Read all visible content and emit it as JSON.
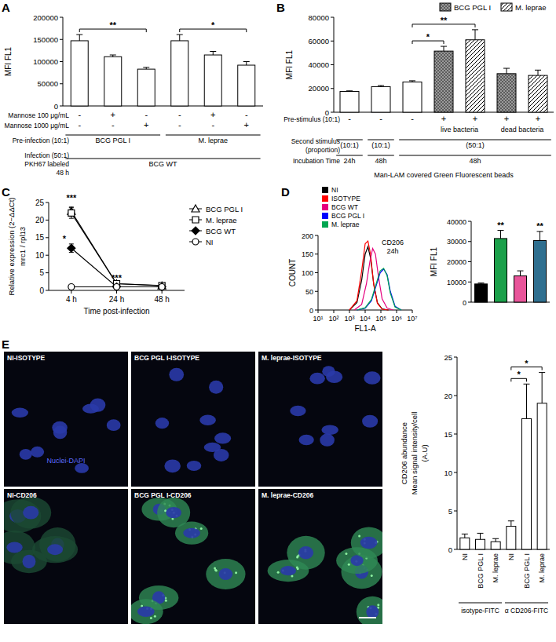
{
  "chart_data": [
    {
      "type": "bar",
      "y_label": "MFI  FL1",
      "values": [
        147000,
        111000,
        83000,
        147000,
        115000,
        92000
      ],
      "errors": [
        14000,
        4000,
        4000,
        14000,
        8000,
        8000
      ],
      "color": "#ffffff",
      "ylim": [
        0,
        200000
      ],
      "yticks": [
        0,
        50000,
        100000,
        150000,
        200000
      ],
      "significance": [
        {
          "from": 0,
          "to": 2,
          "label": "**"
        },
        {
          "from": 3,
          "to": 5,
          "label": "*"
        }
      ],
      "rows": [
        {
          "label": "Mannose 100 μg/mL",
          "marks": [
            "-",
            "+",
            "-",
            "-",
            "+",
            "-"
          ]
        },
        {
          "label": "Mannose 1000 μg/mL",
          "marks": [
            "-",
            "-",
            "+",
            "-",
            "-",
            "+"
          ]
        },
        {
          "label": "Pre-infection (10:1)",
          "cells": [
            {
              "text": "BCG PGL I",
              "from": 0,
              "to": 2
            },
            {
              "text": "M. leprae",
              "from": 3,
              "to": 5
            }
          ]
        },
        {
          "label": [
            "Infection (50:1)",
            "PKH67 labeled",
            "48 h"
          ],
          "cells": [
            {
              "text": "BCG WT",
              "from": 0,
              "to": 5
            }
          ]
        }
      ]
    },
    {
      "type": "bar",
      "y_label": "MFI  FL1",
      "x_label": "Man-LAM covered Green Fluorescent beads",
      "ylim": [
        0,
        80000
      ],
      "yticks": [
        0,
        20000,
        40000,
        60000,
        80000
      ],
      "legend": "top",
      "series": [
        {
          "name": "BCG PGL I",
          "marker": "crosshatch",
          "values": [
            null,
            null,
            null,
            51500,
            null,
            32500,
            null
          ],
          "errors": [
            null,
            null,
            null,
            4000,
            null,
            4500,
            null
          ]
        },
        {
          "name": "M. leprae",
          "marker": "hatch",
          "values": [
            null,
            null,
            null,
            null,
            61000,
            null,
            31000
          ],
          "errors": [
            null,
            null,
            null,
            null,
            8500,
            null,
            4500
          ]
        },
        {
          "color": "#ffffff",
          "values": [
            17500,
            21500,
            25500,
            null,
            null,
            null,
            null
          ],
          "errors": [
            500,
            1000,
            1000,
            null,
            null,
            null,
            null
          ]
        }
      ],
      "significance": [
        {
          "from": 2,
          "to": 3,
          "label": "*"
        },
        {
          "from": 2,
          "to": 4,
          "label": "**"
        }
      ],
      "rows": [
        {
          "label": "Pre-stimulus (10:1)",
          "marks": [
            "-",
            "-",
            "-",
            "+",
            "+",
            "+",
            "+"
          ]
        },
        {
          "cells": [
            {
              "text": "live bacteria",
              "from": 3,
              "to": 4
            },
            {
              "text": "dead bacteria",
              "from": 5,
              "to": 6
            }
          ]
        },
        {
          "label": [
            "Second stimulus",
            "(proportion)"
          ],
          "cells": [
            {
              "text": "(10:1)",
              "from": 0,
              "to": 0
            },
            {
              "text": "(10:1)",
              "from": 1,
              "to": 1
            },
            {
              "text": "(50:1)",
              "from": 2,
              "to": 6
            }
          ]
        },
        {
          "label": "Incubation Time",
          "cells": [
            {
              "text": "24h",
              "from": 0,
              "to": 0
            },
            {
              "text": "48h",
              "from": 1,
              "to": 1
            },
            {
              "text": "48h",
              "from": 2,
              "to": 6
            }
          ]
        }
      ]
    },
    {
      "type": "line",
      "y_label": [
        "Relative expression (2−ΔΔCt)",
        "mrc1 / rpl13"
      ],
      "x_label": "Time post-infection",
      "categories": [
        "4 h",
        "24 h",
        "48 h"
      ],
      "ylim": [
        0,
        25
      ],
      "yticks": [
        0,
        5,
        10,
        15,
        20,
        25
      ],
      "legend": "right",
      "series": [
        {
          "name": "BCG PGL I",
          "color": "#000000",
          "marker": "open-triangle",
          "values": [
            22.5,
            1.9,
            1.3
          ],
          "errors": [
            1.2,
            0.1,
            0.4
          ]
        },
        {
          "name": "M. leprae",
          "color": "#000000",
          "marker": "open-square",
          "values": [
            22,
            1.9,
            1.4
          ],
          "errors": [
            1.5,
            0.1,
            0.5
          ]
        },
        {
          "name": "BCG WT",
          "color": "#000000",
          "marker": "filled-diamond",
          "values": [
            12,
            1,
            1
          ],
          "errors": [
            1.2,
            0.05,
            0.05
          ]
        },
        {
          "name": "NI",
          "color": "#000000",
          "marker": "open-circle",
          "values": [
            1,
            1,
            1
          ],
          "errors": [
            0,
            0,
            0
          ]
        }
      ],
      "annotations": [
        {
          "text": "***",
          "x": 0,
          "y": 25.5
        },
        {
          "text": "*",
          "x": 0,
          "y": 13.8
        },
        {
          "text": "***",
          "x": 1,
          "y": 2.6
        }
      ]
    },
    {
      "type": "line",
      "title": [
        "CD206",
        "24h"
      ],
      "x_label": "FL1-A",
      "y_label": "COUNT",
      "log": "x",
      "xlim": [
        10,
        10000000
      ],
      "xticks": [
        {
          "value": 10,
          "label": "10¹"
        },
        {
          "value": 100,
          "label": "10²"
        },
        {
          "value": 1000,
          "label": "10³"
        },
        {
          "value": 10000,
          "label": "10⁴"
        },
        {
          "value": 100000,
          "label": "10⁵"
        },
        {
          "value": 1000000,
          "label": "10⁶"
        },
        {
          "value": 10000000,
          "label": "10⁷"
        }
      ],
      "ylim": [
        0,
        200
      ],
      "yticks": [
        0,
        50,
        100,
        150,
        200
      ],
      "legend": "top",
      "series": [
        {
          "name": "NI",
          "color": "#000000",
          "x": [
            1000,
            3000,
            6000,
            10000,
            15000,
            22000,
            35000,
            60000,
            120000,
            300000
          ],
          "values": [
            0,
            20,
            80,
            150,
            170,
            140,
            70,
            20,
            3,
            0
          ]
        },
        {
          "name": "ISOTYPE",
          "color": "#ff0000",
          "x": [
            1000,
            3000,
            6000,
            10000,
            15000,
            22000,
            35000,
            60000,
            120000,
            300000
          ],
          "values": [
            0,
            25,
            105,
            178,
            185,
            150,
            68,
            18,
            2,
            0
          ]
        },
        {
          "name": "BCG WT",
          "color": "#e6007e",
          "x": [
            2000,
            6000,
            12000,
            20000,
            30000,
            45000,
            70000,
            120000,
            250000,
            600000
          ],
          "values": [
            0,
            15,
            70,
            130,
            165,
            150,
            90,
            30,
            5,
            0
          ]
        },
        {
          "name": "BCG PGL I",
          "color": "#0000ff",
          "x": [
            3000,
            10000,
            25000,
            50000,
            90000,
            150000,
            250000,
            400000,
            800000,
            2000000
          ],
          "values": [
            0,
            5,
            25,
            65,
            100,
            110,
            95,
            50,
            10,
            0
          ]
        },
        {
          "name": "M. leprae",
          "color": "#00a651",
          "x": [
            3000,
            10000,
            25000,
            50000,
            90000,
            150000,
            250000,
            400000,
            800000,
            2000000
          ],
          "values": [
            0,
            6,
            28,
            70,
            105,
            112,
            92,
            45,
            8,
            0
          ]
        }
      ]
    },
    {
      "type": "bar",
      "y_label": "MFI  FL1",
      "values": [
        9000,
        31500,
        13000,
        30500
      ],
      "errors": [
        500,
        4000,
        2500,
        4500
      ],
      "colors": [
        "#000000",
        "#1ba04a",
        "#e8559a",
        "#2f6f8f"
      ],
      "ylim": [
        0,
        40000
      ],
      "yticks": [
        0,
        10000,
        20000,
        30000,
        40000
      ],
      "significance": [
        {
          "from": 1,
          "to": 1,
          "label": "**"
        },
        {
          "from": 3,
          "to": 3,
          "label": "**"
        }
      ]
    },
    {
      "type": "bar",
      "y_label": [
        "CD206 abundance",
        "Mean signal intensity/cell",
        "(A.U)"
      ],
      "categories": [
        "NI",
        "BCG PGL I",
        "M. leprae",
        "NI",
        "BCG PGL I",
        "M. leprae"
      ],
      "values": [
        1.5,
        1.3,
        1.0,
        3.0,
        17,
        19
      ],
      "errors": [
        0.5,
        0.8,
        0.4,
        0.7,
        4.5,
        4
      ],
      "color": "#ffffff",
      "ylim": [
        0,
        25
      ],
      "yticks": [
        0,
        5,
        10,
        15,
        20,
        25
      ],
      "groups": [
        {
          "label": "isotype-FITC",
          "from": 0,
          "to": 2
        },
        {
          "label": "α CD206-FITC",
          "from": 3,
          "to": 5
        }
      ],
      "significance": [
        {
          "from": 3,
          "to": 4,
          "label": "*"
        },
        {
          "from": 3,
          "to": 5,
          "label": "*"
        }
      ]
    }
  ],
  "figure": {
    "panel_labels": [
      "A",
      "B",
      "C",
      "D",
      "E"
    ],
    "images": {
      "isotype": [
        "NI-ISOTYPE",
        "BCG PGL I-ISOTYPE",
        "M. leprae-ISOTYPE"
      ],
      "cd206": [
        "NI-CD206",
        "BCG PGL I-CD206",
        "M. leprae-CD206"
      ],
      "stain_label": "Nuclei-DAPI"
    }
  }
}
